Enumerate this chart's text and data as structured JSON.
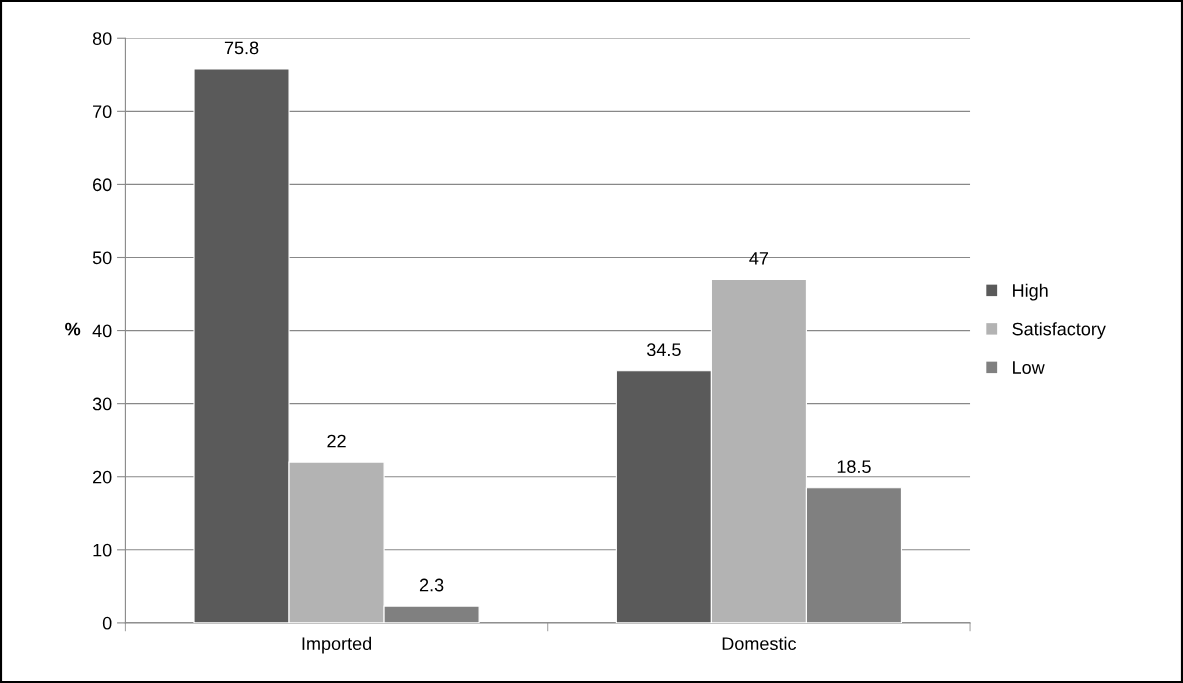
{
  "chart_data": {
    "type": "bar",
    "ylabel": "%",
    "categories": [
      "Imported",
      "Domestic"
    ],
    "series": [
      {
        "name": "High",
        "color": "#5a5a5a",
        "values": [
          75.8,
          34.5
        ]
      },
      {
        "name": "Satisfactory",
        "color": "#b3b3b3",
        "values": [
          22,
          47
        ]
      },
      {
        "name": "Low",
        "color": "#808080",
        "values": [
          2.3,
          18.5
        ]
      }
    ],
    "ylim": [
      0,
      80
    ],
    "yticks": [
      0,
      10,
      20,
      30,
      40,
      50,
      60,
      70,
      80
    ],
    "grid": "y",
    "legend": "right",
    "data_labels": true
  }
}
